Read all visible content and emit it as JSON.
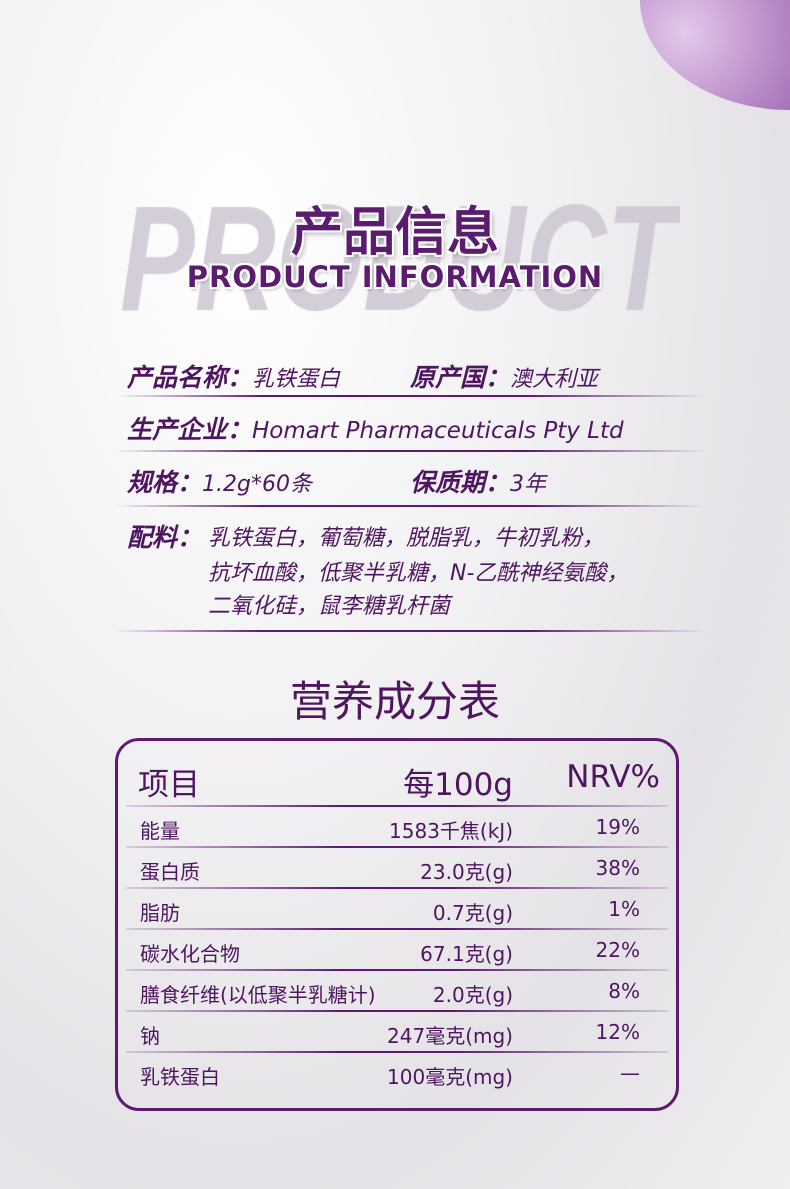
{
  "watermark": "PRODUCT",
  "title": "产品信息",
  "subtitle": "PRODUCT INFORMATION",
  "info": {
    "name_label": "产品名称：",
    "name": "乳铁蛋白",
    "origin_label": "原产国：",
    "origin": "澳大利亚",
    "maker_label": "生产企业：",
    "maker": "Homart Pharmaceuticals Pty Ltd",
    "spec_label": "规格：",
    "spec": "1.2g*60条",
    "shelf_label": "保质期：",
    "shelf": "3年",
    "ingredients_label": "配料：",
    "ingredients_lines": [
      "乳铁蛋白，葡萄糖，脱脂乳，牛初乳粉，",
      "抗坏血酸，低聚半乳糖，N-乙酰神经氨酸，",
      "二氧化硅，鼠李糖乳杆菌"
    ]
  },
  "nutrition": {
    "title": "营养成分表",
    "headers": [
      "项目",
      "每100g",
      "NRV%"
    ],
    "rows": [
      [
        "能量",
        "1583千焦(kJ)",
        "19%"
      ],
      [
        "蛋白质",
        "23.0克(g)",
        "38%"
      ],
      [
        "脂肪",
        "0.7克(g)",
        "1%"
      ],
      [
        "碳水化合物",
        "67.1克(g)",
        "22%"
      ],
      [
        "膳食纤维(以低聚半乳糖计)",
        "2.0克(g)",
        "8%"
      ],
      [
        "钠",
        "247毫克(mg)",
        "12%"
      ],
      [
        "乳铁蛋白",
        "100毫克(mg)",
        "—"
      ]
    ]
  },
  "colors": {
    "accent": "#5c1b6e"
  }
}
